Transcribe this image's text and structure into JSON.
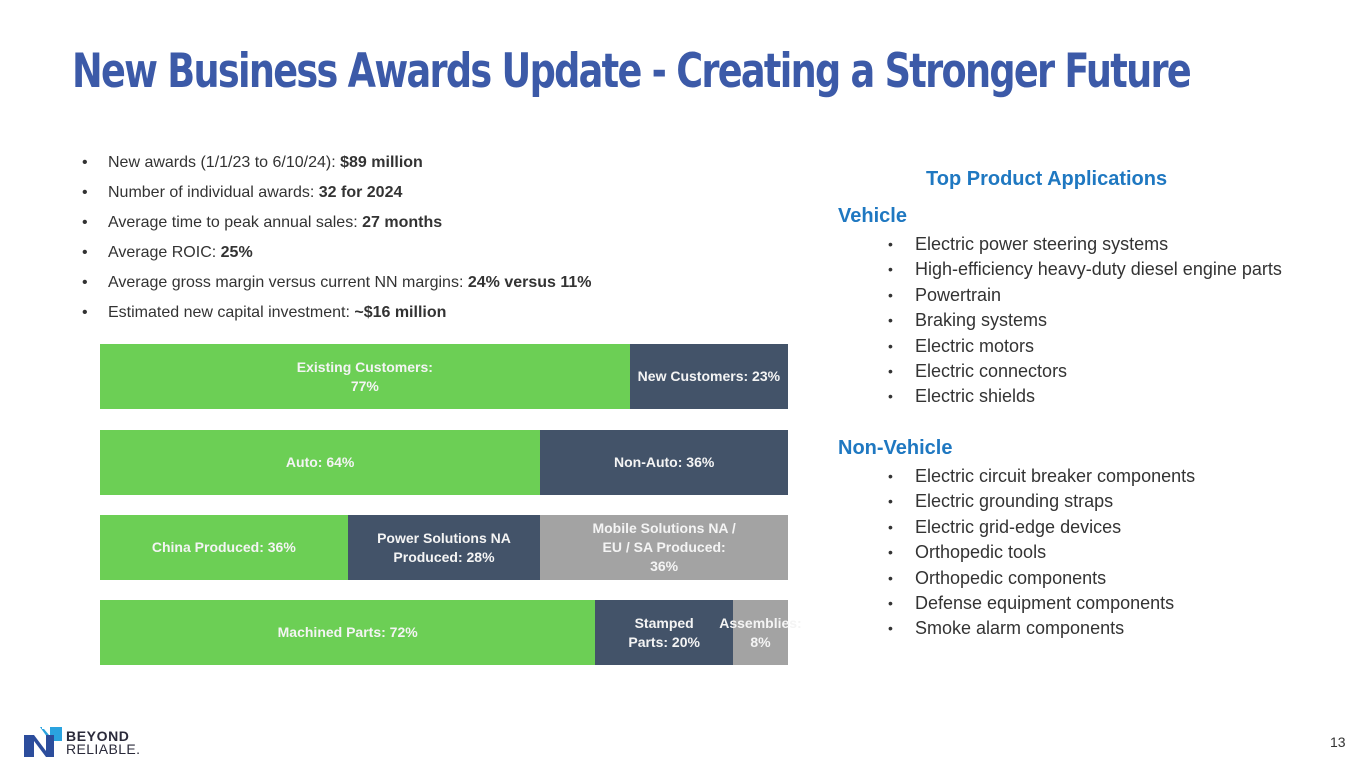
{
  "slide": {
    "title": "New Business Awards Update - Creating a Stronger Future",
    "page_number": "13"
  },
  "summary_bullets": [
    {
      "text": "New awards (1/1/23 to 6/10/24): ",
      "bold": "$89 million"
    },
    {
      "text": "Number of individual awards: ",
      "bold": "32 for 2024"
    },
    {
      "text": "Average time to peak annual sales: ",
      "bold": "27 months"
    },
    {
      "text": "Average ROIC: ",
      "bold": "25%"
    },
    {
      "text": "Average gross margin versus current NN margins: ",
      "bold": "24% versus 11%"
    },
    {
      "text": "Estimated new capital investment: ",
      "bold": "~$16 million"
    }
  ],
  "colors": {
    "green": "#6ccf55",
    "navy": "#435369",
    "gray": "#a3a3a3",
    "title_blue": "#3c5aa8",
    "heading_blue": "#1f78c1"
  },
  "chart_data": {
    "type": "bar",
    "orientation": "horizontal-stacked-100",
    "title": "",
    "xlabel": "",
    "ylabel": "",
    "xlim": [
      0,
      100
    ],
    "grid": false,
    "legend": "none",
    "rows": [
      {
        "name": "customers",
        "segments": [
          {
            "label": "Existing Customers:\n77%",
            "value": 77,
            "color": "green"
          },
          {
            "label": "New Customers: 23%",
            "value": 23,
            "color": "navy"
          }
        ]
      },
      {
        "name": "market",
        "segments": [
          {
            "label": "Auto: 64%",
            "value": 64,
            "color": "green"
          },
          {
            "label": "Non-Auto: 36%",
            "value": 36,
            "color": "navy"
          }
        ]
      },
      {
        "name": "production",
        "segments": [
          {
            "label": "China Produced: 36%",
            "value": 36,
            "color": "green"
          },
          {
            "label": "Power Solutions NA\nProduced: 28%",
            "value": 28,
            "color": "navy"
          },
          {
            "label": "Mobile Solutions NA /\nEU / SA Produced:\n36%",
            "value": 36,
            "color": "gray"
          }
        ]
      },
      {
        "name": "product-type",
        "segments": [
          {
            "label": "Machined Parts: 72%",
            "value": 72,
            "color": "green"
          },
          {
            "label": "Stamped\nParts: 20%",
            "value": 20,
            "color": "navy"
          },
          {
            "label": "Assemblies:\n8%",
            "value": 8,
            "color": "gray"
          }
        ]
      }
    ]
  },
  "applications": {
    "title": "Top Product Applications",
    "vehicle": {
      "heading": "Vehicle",
      "items": [
        "Electric power steering systems",
        "High-efficiency heavy-duty diesel engine parts",
        "Powertrain",
        "Braking systems",
        "Electric motors",
        "Electric connectors",
        "Electric shields"
      ]
    },
    "non_vehicle": {
      "heading": "Non-Vehicle",
      "items": [
        "Electric circuit breaker components",
        "Electric grounding straps",
        "Electric grid-edge devices",
        "Orthopedic tools",
        "Orthopedic components",
        "Defense equipment components",
        "Smoke alarm components"
      ]
    }
  },
  "logo": {
    "line1": "BEYOND",
    "line2": "RELIABLE.",
    "icon": "nn-logo-icon"
  },
  "bullet_glyph": "•"
}
